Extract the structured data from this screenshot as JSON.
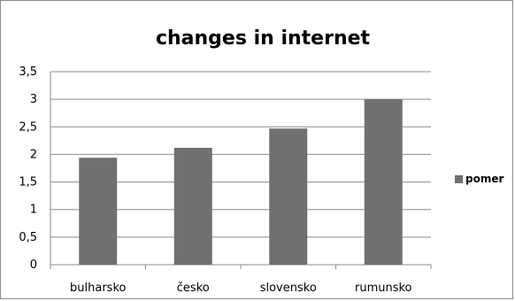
{
  "chart_data": {
    "type": "bar",
    "title": "changes in internet",
    "categories": [
      "bulharsko",
      "česko",
      "slovensko",
      "rumunsko"
    ],
    "series": [
      {
        "name": "pomer",
        "values": [
          1.94,
          2.12,
          2.47,
          3.0
        ],
        "color": "#707070"
      }
    ],
    "ylim": [
      0,
      3.5
    ],
    "yticks": [
      "0",
      "0,5",
      "1",
      "1,5",
      "2",
      "2,5",
      "3",
      "3,5"
    ],
    "xlabel": "",
    "ylabel": "",
    "grid": true,
    "legend": "right"
  }
}
